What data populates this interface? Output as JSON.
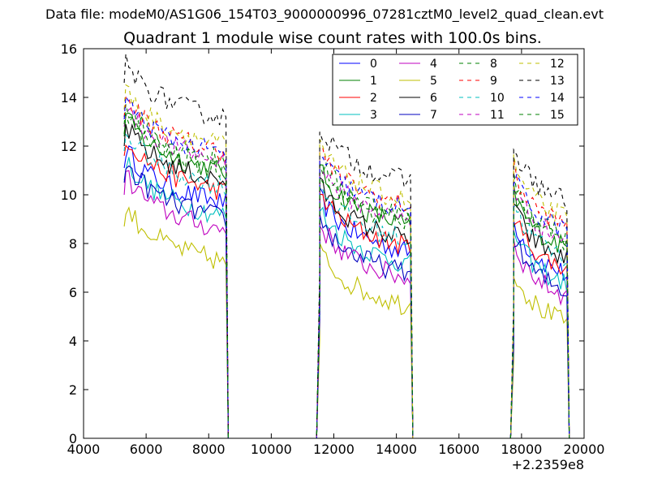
{
  "chart_data": {
    "type": "line",
    "suptitle": "Data file: modeM0/AS1G06_154T03_9000000996_07281cztM0_level2_quad_clean.evt",
    "title": "Quadrant 1 module wise count rates with 100.0s bins.",
    "xlabel": "",
    "ylabel": "",
    "offset_label": "+2.2359e8",
    "xlim": [
      4000,
      20000
    ],
    "ylim": [
      0,
      16
    ],
    "xticks": [
      "4000",
      "6000",
      "8000",
      "10000",
      "12000",
      "14000",
      "16000",
      "18000",
      "20000"
    ],
    "yticks": [
      "0",
      "2",
      "4",
      "6",
      "8",
      "10",
      "12",
      "14",
      "16"
    ],
    "legend_position": "top-right",
    "segments": [
      {
        "start": 5350,
        "end": 8550
      },
      {
        "start": 11550,
        "end": 14450
      },
      {
        "start": 17750,
        "end": 19450
      }
    ],
    "series": [
      {
        "name": "0",
        "color": "#0000ff",
        "dash": "solid",
        "levels": [
          10.5,
          8.5,
          7.6
        ]
      },
      {
        "name": "1",
        "color": "#008000",
        "dash": "solid",
        "levels": [
          11.8,
          9.6,
          8.7
        ]
      },
      {
        "name": "2",
        "color": "#ff0000",
        "dash": "solid",
        "levels": [
          11.0,
          8.7,
          7.8
        ]
      },
      {
        "name": "3",
        "color": "#00bfbf",
        "dash": "solid",
        "levels": [
          10.0,
          8.0,
          7.2
        ]
      },
      {
        "name": "4",
        "color": "#bf00bf",
        "dash": "solid",
        "levels": [
          9.4,
          7.4,
          6.7
        ]
      },
      {
        "name": "5",
        "color": "#bfbf00",
        "dash": "solid",
        "levels": [
          8.1,
          6.3,
          5.6
        ]
      },
      {
        "name": "6",
        "color": "#000000",
        "dash": "solid",
        "levels": [
          11.4,
          9.0,
          8.2
        ]
      },
      {
        "name": "7",
        "color": "#0000bf",
        "dash": "solid",
        "levels": [
          9.9,
          7.6,
          6.9
        ]
      },
      {
        "name": "8",
        "color": "#008000",
        "dash": "dash",
        "levels": [
          12.3,
          10.0,
          9.2
        ]
      },
      {
        "name": "9",
        "color": "#ff0000",
        "dash": "dash",
        "levels": [
          12.6,
          10.4,
          9.6
        ]
      },
      {
        "name": "10",
        "color": "#00bfbf",
        "dash": "dash",
        "levels": [
          11.2,
          9.0,
          8.3
        ]
      },
      {
        "name": "11",
        "color": "#bf00bf",
        "dash": "dash",
        "levels": [
          12.2,
          9.8,
          9.0
        ]
      },
      {
        "name": "12",
        "color": "#bfbf00",
        "dash": "dash",
        "levels": [
          12.9,
          10.6,
          9.9
        ]
      },
      {
        "name": "13",
        "color": "#000000",
        "dash": "dash",
        "levels": [
          14.0,
          11.4,
          10.6
        ]
      },
      {
        "name": "14",
        "color": "#0000ff",
        "dash": "dash",
        "levels": [
          12.5,
          10.2,
          9.4
        ]
      },
      {
        "name": "15",
        "color": "#008000",
        "dash": "dash",
        "levels": [
          11.9,
          9.7,
          8.9
        ]
      }
    ]
  }
}
